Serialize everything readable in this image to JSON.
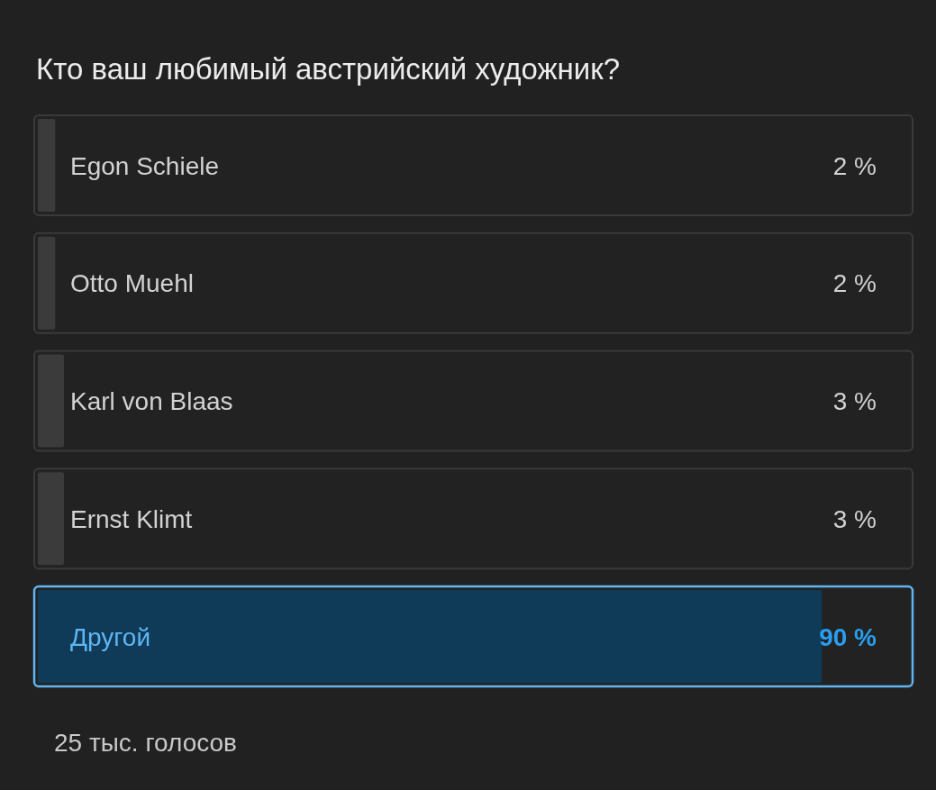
{
  "chart_data": {
    "type": "bar",
    "orientation": "horizontal",
    "title": "Кто ваш любимый австрийский художник?",
    "categories": [
      "Egon Schiele",
      "Otto Muehl",
      "Karl von Blaas",
      "Ernst Klimt",
      "Другой"
    ],
    "values": [
      2,
      2,
      3,
      3,
      90
    ],
    "value_labels": [
      "2 %",
      "2 %",
      "3 %",
      "3 %",
      "90 %"
    ],
    "colors": [
      "#3b3b3b",
      "#3b3b3b",
      "#3b3b3b",
      "#3b3b3b",
      "#0f3a58"
    ],
    "xlim": [
      0,
      100
    ],
    "annotations": [
      "25 тыс. голосов"
    ]
  }
}
